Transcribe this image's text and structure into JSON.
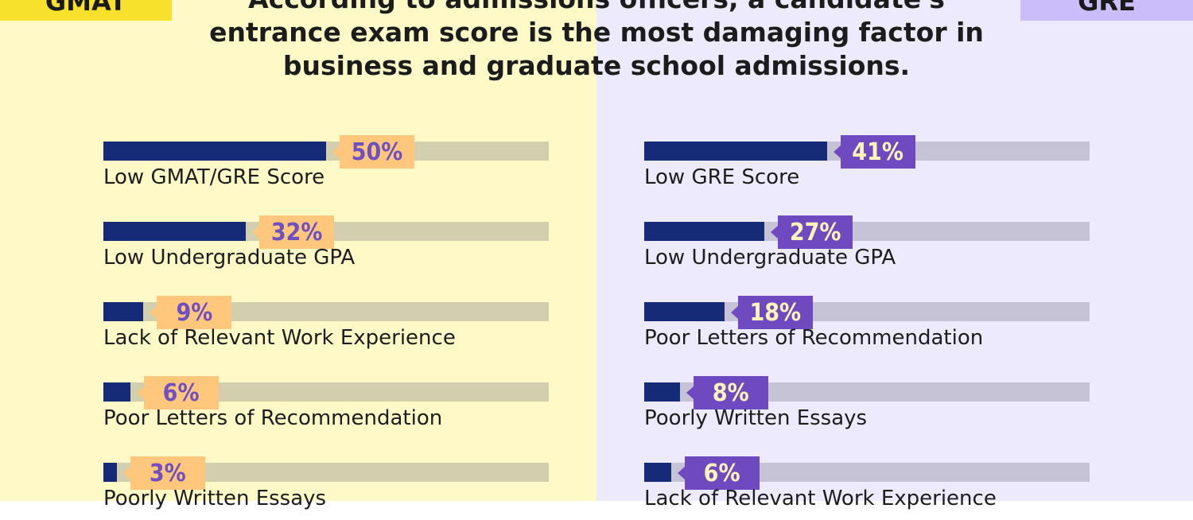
{
  "tags": {
    "left": "GMAT",
    "right": "GRE"
  },
  "headline": "According to admissions officers, a candidate's entrance exam score is the most damaging factor in business and graduate school admissions.",
  "colors": {
    "left_background": "#fff9c8",
    "right_background": "#eeeafd",
    "bar_fill": "#162b78",
    "left_badge": "#fec77c",
    "right_badge": "#6e49bf"
  },
  "chart_data": [
    {
      "type": "bar",
      "panel": "GMAT",
      "orientation": "horizontal",
      "xlim": [
        0,
        100
      ],
      "categories": [
        "Low GMAT/GRE Score",
        "Low Undergraduate GPA",
        "Lack of Relevant Work Experience",
        "Poor Letters of Recommendation",
        "Poorly Written Essays"
      ],
      "values": [
        50,
        32,
        9,
        6,
        3
      ],
      "value_labels": [
        "50%",
        "32%",
        "9%",
        "6%",
        "3%"
      ]
    },
    {
      "type": "bar",
      "panel": "GRE",
      "orientation": "horizontal",
      "xlim": [
        0,
        100
      ],
      "categories": [
        "Low GRE Score",
        "Low Undergraduate GPA",
        "Poor Letters of Recommendation",
        "Poorly Written Essays",
        "Lack of Relevant Work Experience"
      ],
      "values": [
        41,
        27,
        18,
        8,
        6
      ],
      "value_labels": [
        "41%",
        "27%",
        "18%",
        "8%",
        "6%"
      ]
    }
  ]
}
